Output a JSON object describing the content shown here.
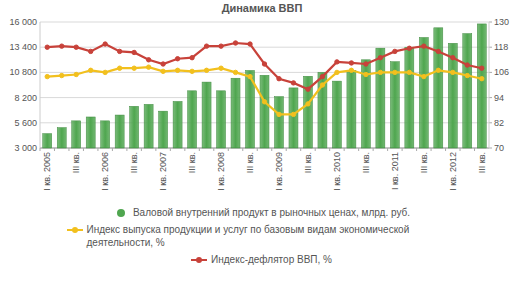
{
  "chart_data": {
    "type": "bar",
    "title": "Динамика ВВП",
    "categories": [
      "I кв. 2005",
      null,
      "III кв.",
      null,
      "I кв. 2006",
      null,
      "III кв.",
      null,
      "I кв. 2007",
      null,
      "III кв.",
      null,
      "I кв. 2008",
      null,
      "III кв.",
      null,
      "I кв. 2009",
      null,
      "III кв.",
      null,
      "I кв. 2010",
      null,
      "III кв.",
      null,
      "I кв. 2011",
      null,
      "III кв.",
      null,
      "I кв. 2012",
      null,
      "III кв."
    ],
    "series": [
      {
        "name": "Валовой внутренний продукт в рыночных ценах, млрд. руб.",
        "type": "bar",
        "color": "#4fa64f",
        "values": [
          4480,
          5100,
          5800,
          6200,
          5800,
          6400,
          7300,
          7500,
          6800,
          7800,
          8900,
          9800,
          8900,
          10200,
          11000,
          10500,
          8300,
          9200,
          10400,
          10800,
          9900,
          11000,
          12100,
          13300,
          11900,
          13400,
          14400,
          15400,
          13800,
          14800,
          15800
        ]
      },
      {
        "name": "Индекс выпуска продукции и услуг по базовым видам экономической деятельности, %",
        "type": "line",
        "axis": "y2",
        "color": "#f2c01e",
        "marker": "circle",
        "values": [
          104,
          104.5,
          105,
          107,
          106,
          108,
          108,
          108.5,
          106.5,
          107,
          106.5,
          107,
          108,
          106,
          104,
          92,
          86,
          86,
          91,
          100,
          106,
          107,
          105,
          106,
          106,
          106,
          104,
          107,
          106,
          104.5,
          103
        ]
      },
      {
        "name": "Индекс-дефлятор ВВП, %",
        "type": "line",
        "axis": "y2",
        "color": "#c8423a",
        "marker": "circle",
        "values": [
          118,
          118.5,
          118,
          116,
          119.5,
          116,
          115.5,
          112,
          110,
          112.5,
          113,
          118.5,
          118.5,
          120,
          119.5,
          110,
          103,
          101,
          98,
          104,
          111,
          110.5,
          110,
          113,
          116,
          117.5,
          118.5,
          116,
          113,
          109.5,
          108
        ]
      }
    ],
    "ylim": [
      3000,
      16000
    ],
    "yticks": [
      {
        "value": 3000,
        "label": "3 000"
      },
      {
        "value": 5600,
        "label": "5 600"
      },
      {
        "value": 8200,
        "label": "8 200"
      },
      {
        "value": 10800,
        "label": "10 800"
      },
      {
        "value": 13400,
        "label": "13 400"
      },
      {
        "value": 16000,
        "label": "16 000"
      }
    ],
    "y2lim": [
      70,
      130
    ],
    "y2ticks": [
      70,
      82,
      94,
      106,
      118,
      130
    ],
    "grid": true,
    "legend": "bottom"
  }
}
